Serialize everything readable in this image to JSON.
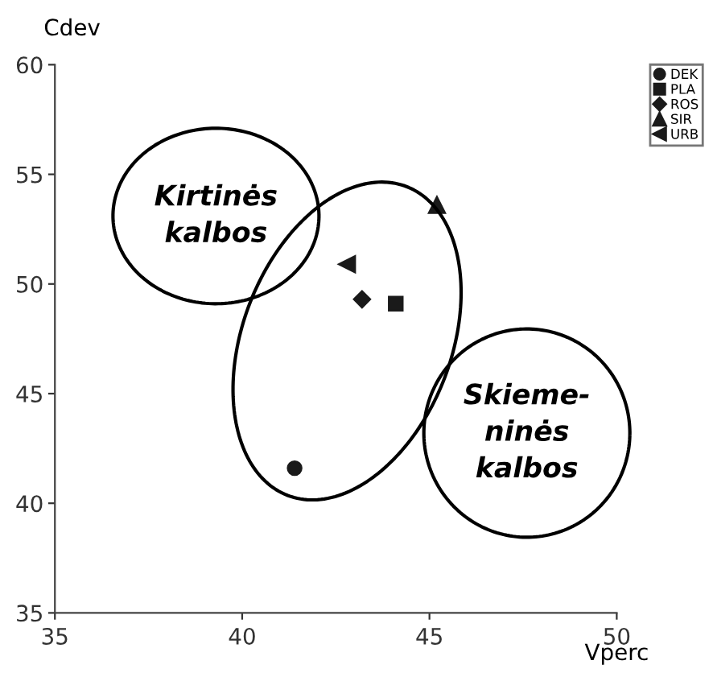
{
  "chart_data": {
    "type": "scatter",
    "xlabel": "Vperc",
    "ylabel": "Cdev",
    "xlim": [
      35,
      50
    ],
    "ylim": [
      35,
      60
    ],
    "xticks": [
      35,
      40,
      45,
      50
    ],
    "yticks": [
      35,
      40,
      45,
      50,
      55,
      60
    ],
    "grid": false,
    "legend": "top right",
    "series": [
      {
        "name": "DEK",
        "color": "#1a1a1a",
        "marker": "circle",
        "x": [
          41.4
        ],
        "values": [
          41.6
        ]
      },
      {
        "name": "PLA",
        "color": "#1a1a1a",
        "marker": "square",
        "x": [
          44.1
        ],
        "values": [
          49.1
        ]
      },
      {
        "name": "ROS",
        "color": "#1a1a1a",
        "marker": "diamond",
        "x": [
          43.2
        ],
        "values": [
          49.3
        ]
      },
      {
        "name": "SIR",
        "color": "#1a1a1a",
        "marker": "triangle",
        "x": [
          45.2
        ],
        "values": [
          53.6
        ]
      },
      {
        "name": "URB",
        "color": "#1a1a1a",
        "marker": "triangle-left",
        "x": [
          42.8
        ],
        "values": [
          50.9
        ]
      }
    ],
    "annotations": [
      "Kirtinės\nkalbos",
      "Skieme-\nninės\nkalbos"
    ]
  }
}
